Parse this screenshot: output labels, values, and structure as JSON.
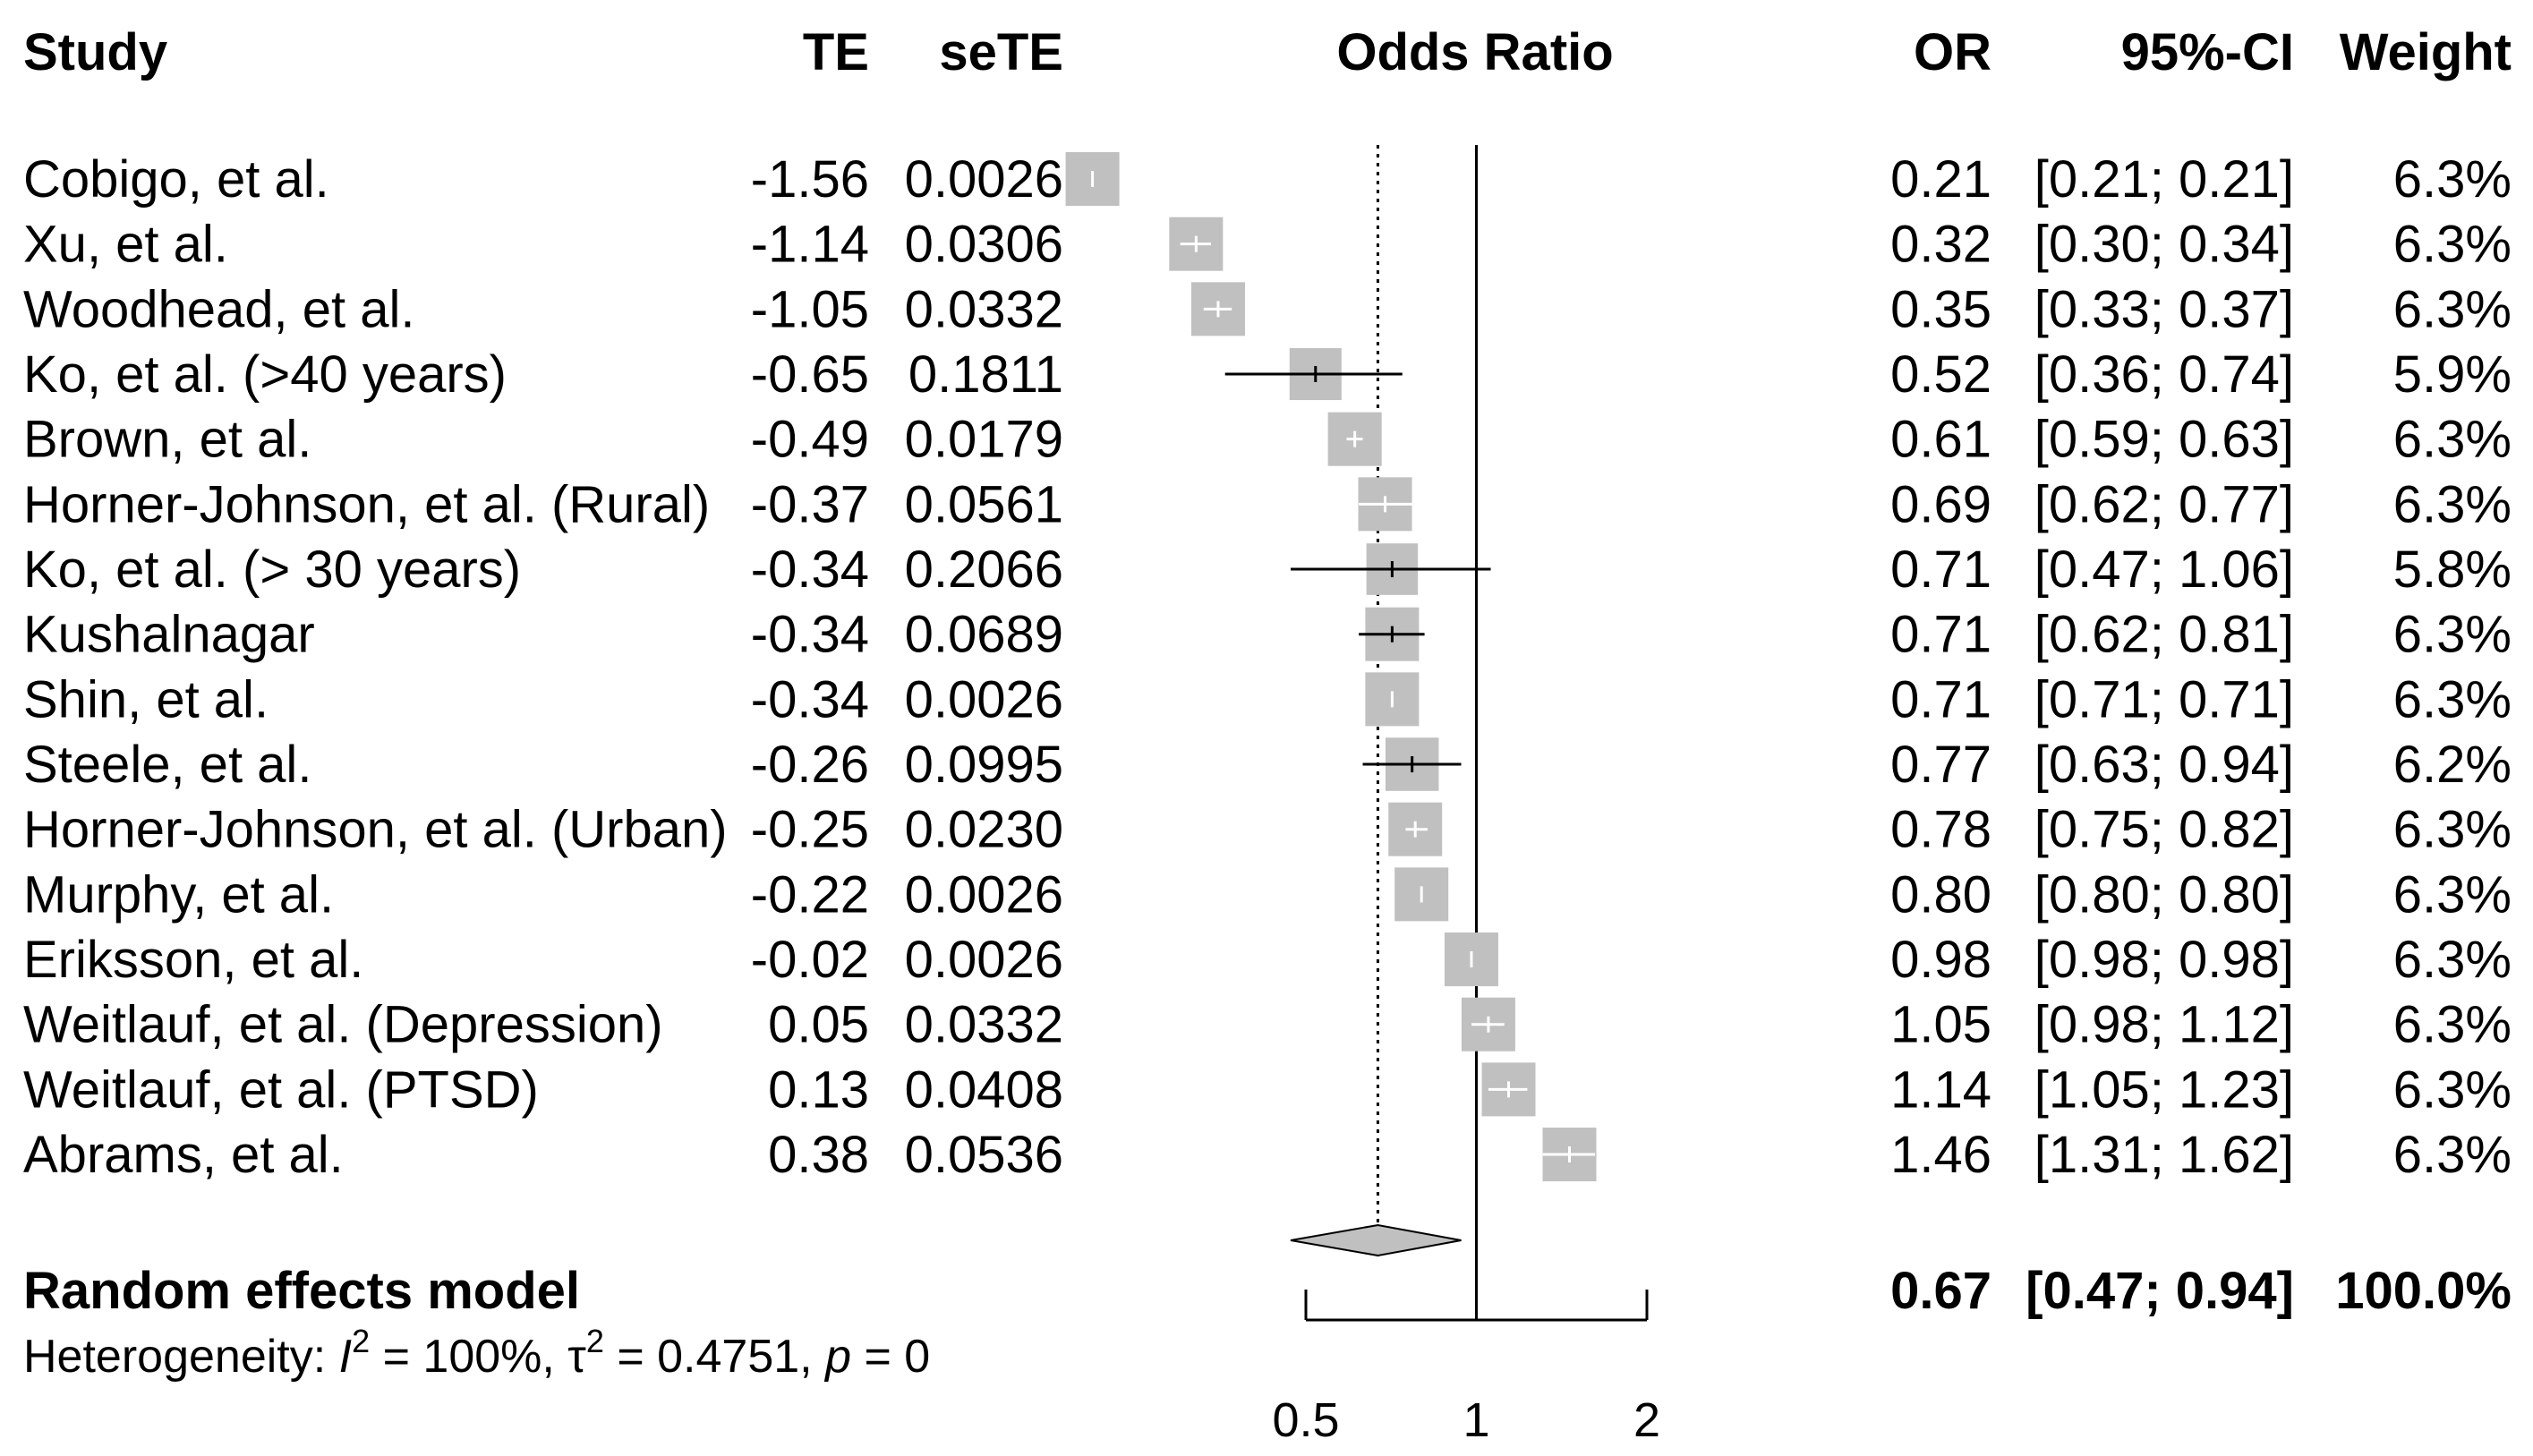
{
  "chart_data": {
    "type": "forest",
    "xlabel": "Odds Ratio",
    "xscale": "log",
    "xlim": [
      0.5,
      2
    ],
    "ticks": [
      0.5,
      1,
      2
    ],
    "tick_labels": [
      "0.5",
      "1",
      "2"
    ],
    "reference_line": 1,
    "headers": {
      "study": "Study",
      "te": "TE",
      "sete": "seTE",
      "plot": "Odds Ratio",
      "or": "OR",
      "ci": "95%-CI",
      "weight": "Weight"
    },
    "studies": [
      {
        "study": "Cobigo, et al.",
        "te": "-1.56",
        "sete": "0.0026",
        "or": 0.21,
        "lower": 0.21,
        "upper": 0.21,
        "or_text": "0.21",
        "ci_text": "[0.21; 0.21]",
        "weight": 6.3,
        "weight_text": "6.3%"
      },
      {
        "study": "Xu, et al.",
        "te": "-1.14",
        "sete": "0.0306",
        "or": 0.32,
        "lower": 0.3,
        "upper": 0.34,
        "or_text": "0.32",
        "ci_text": "[0.30; 0.34]",
        "weight": 6.3,
        "weight_text": "6.3%"
      },
      {
        "study": "Woodhead, et al.",
        "te": "-1.05",
        "sete": "0.0332",
        "or": 0.35,
        "lower": 0.33,
        "upper": 0.37,
        "or_text": "0.35",
        "ci_text": "[0.33; 0.37]",
        "weight": 6.3,
        "weight_text": "6.3%"
      },
      {
        "study": "Ko, et al. (>40 years)",
        "te": "-0.65",
        "sete": "0.1811",
        "or": 0.52,
        "lower": 0.36,
        "upper": 0.74,
        "or_text": "0.52",
        "ci_text": "[0.36; 0.74]",
        "weight": 5.9,
        "weight_text": "5.9%"
      },
      {
        "study": "Brown, et al.",
        "te": "-0.49",
        "sete": "0.0179",
        "or": 0.61,
        "lower": 0.59,
        "upper": 0.63,
        "or_text": "0.61",
        "ci_text": "[0.59; 0.63]",
        "weight": 6.3,
        "weight_text": "6.3%"
      },
      {
        "study": "Horner-Johnson, et al. (Rural)",
        "te": "-0.37",
        "sete": "0.0561",
        "or": 0.69,
        "lower": 0.62,
        "upper": 0.77,
        "or_text": "0.69",
        "ci_text": "[0.62; 0.77]",
        "weight": 6.3,
        "weight_text": "6.3%"
      },
      {
        "study": "Ko, et al. (> 30 years)",
        "te": "-0.34",
        "sete": "0.2066",
        "or": 0.71,
        "lower": 0.47,
        "upper": 1.06,
        "or_text": "0.71",
        "ci_text": "[0.47; 1.06]",
        "weight": 5.8,
        "weight_text": "5.8%"
      },
      {
        "study": "Kushalnagar",
        "te": "-0.34",
        "sete": "0.0689",
        "or": 0.71,
        "lower": 0.62,
        "upper": 0.81,
        "or_text": "0.71",
        "ci_text": "[0.62; 0.81]",
        "weight": 6.3,
        "weight_text": "6.3%"
      },
      {
        "study": "Shin, et al.",
        "te": "-0.34",
        "sete": "0.0026",
        "or": 0.71,
        "lower": 0.71,
        "upper": 0.71,
        "or_text": "0.71",
        "ci_text": "[0.71; 0.71]",
        "weight": 6.3,
        "weight_text": "6.3%"
      },
      {
        "study": "Steele, et al.",
        "te": "-0.26",
        "sete": "0.0995",
        "or": 0.77,
        "lower": 0.63,
        "upper": 0.94,
        "or_text": "0.77",
        "ci_text": "[0.63; 0.94]",
        "weight": 6.2,
        "weight_text": "6.2%"
      },
      {
        "study": "Horner-Johnson, et al. (Urban)",
        "te": "-0.25",
        "sete": "0.0230",
        "or": 0.78,
        "lower": 0.75,
        "upper": 0.82,
        "or_text": "0.78",
        "ci_text": "[0.75; 0.82]",
        "weight": 6.3,
        "weight_text": "6.3%"
      },
      {
        "study": "Murphy, et al.",
        "te": "-0.22",
        "sete": "0.0026",
        "or": 0.8,
        "lower": 0.8,
        "upper": 0.8,
        "or_text": "0.80",
        "ci_text": "[0.80; 0.80]",
        "weight": 6.3,
        "weight_text": "6.3%"
      },
      {
        "study": "Eriksson, et al.",
        "te": "-0.02",
        "sete": "0.0026",
        "or": 0.98,
        "lower": 0.98,
        "upper": 0.98,
        "or_text": "0.98",
        "ci_text": "[0.98; 0.98]",
        "weight": 6.3,
        "weight_text": "6.3%"
      },
      {
        "study": "Weitlauf, et al. (Depression)",
        "te": "0.05",
        "sete": "0.0332",
        "or": 1.05,
        "lower": 0.98,
        "upper": 1.12,
        "or_text": "1.05",
        "ci_text": "[0.98; 1.12]",
        "weight": 6.3,
        "weight_text": "6.3%"
      },
      {
        "study": "Weitlauf, et al. (PTSD)",
        "te": "0.13",
        "sete": "0.0408",
        "or": 1.14,
        "lower": 1.05,
        "upper": 1.23,
        "or_text": "1.14",
        "ci_text": "[1.05; 1.23]",
        "weight": 6.3,
        "weight_text": "6.3%"
      },
      {
        "study": "Abrams, et al.",
        "te": "0.38",
        "sete": "0.0536",
        "or": 1.46,
        "lower": 1.31,
        "upper": 1.62,
        "or_text": "1.46",
        "ci_text": "[1.31; 1.62]",
        "weight": 6.3,
        "weight_text": "6.3%"
      }
    ],
    "pooled": {
      "label": "Random effects model",
      "or": 0.67,
      "lower": 0.47,
      "upper": 0.94,
      "or_text": "0.67",
      "ci_text": "[0.47; 0.94]",
      "weight_text": "100.0%"
    },
    "heterogeneity": {
      "prefix": "Heterogeneity: ",
      "i2_symbol": "I",
      "i2_value": " = 100%, ",
      "tau2_symbol": "τ",
      "tau2_value": " = 0.4751, ",
      "p_symbol": "p",
      "p_value": " = 0",
      "superscript": "2"
    },
    "colors": {
      "box": "#c0c0c0",
      "diamond": "#c0c0c0",
      "line": "#000000",
      "inner_tick": "#ffffff"
    }
  }
}
